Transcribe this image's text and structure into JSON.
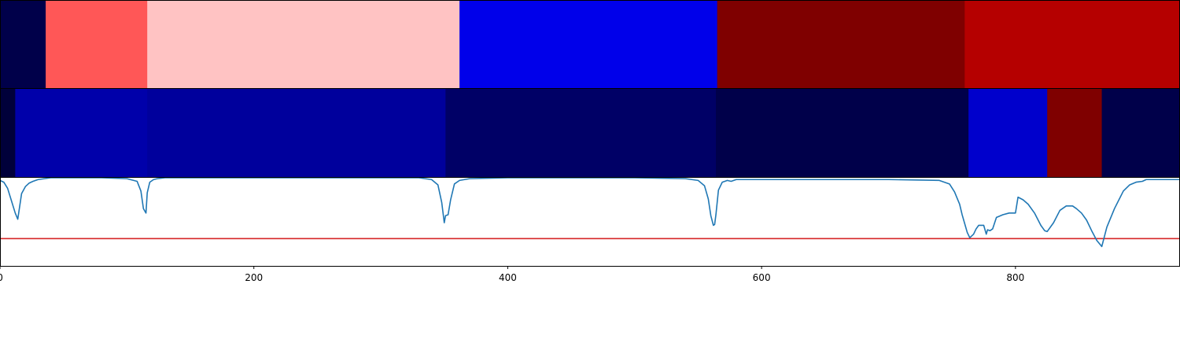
{
  "chart_data": [
    {
      "type": "heatmap",
      "x_domain": [
        0,
        929
      ],
      "segments": [
        {
          "x0": 0,
          "x1": 36,
          "color": "#00004a"
        },
        {
          "x0": 36,
          "x1": 116,
          "color": "#ff5757"
        },
        {
          "x0": 116,
          "x1": 362,
          "color": "#ffc3c3"
        },
        {
          "x0": 362,
          "x1": 565,
          "color": "#0000ea"
        },
        {
          "x0": 565,
          "x1": 760,
          "color": "#7f0000"
        },
        {
          "x0": 760,
          "x1": 929,
          "color": "#b50000"
        }
      ]
    },
    {
      "type": "heatmap",
      "x_domain": [
        0,
        929
      ],
      "segments": [
        {
          "x0": 0,
          "x1": 12,
          "color": "#00003a"
        },
        {
          "x0": 12,
          "x1": 116,
          "color": "#0000aa"
        },
        {
          "x0": 116,
          "x1": 351,
          "color": "#00009c"
        },
        {
          "x0": 351,
          "x1": 564,
          "color": "#000066"
        },
        {
          "x0": 564,
          "x1": 763,
          "color": "#00004a"
        },
        {
          "x0": 763,
          "x1": 825,
          "color": "#0000cc"
        },
        {
          "x0": 825,
          "x1": 868,
          "color": "#7f0000"
        },
        {
          "x0": 868,
          "x1": 929,
          "color": "#00004a"
        }
      ]
    },
    {
      "type": "line",
      "xlim": [
        0,
        929
      ],
      "ylim": [
        0,
        1
      ],
      "xticks": [
        0,
        200,
        400,
        600,
        800
      ],
      "line_color": "#1f77b4",
      "threshold": {
        "y": 0.31,
        "color": "#d62728"
      },
      "series": [
        {
          "x": [
            0,
            3,
            6,
            9,
            12,
            14,
            17,
            20,
            23,
            26,
            30,
            35,
            40,
            50,
            60,
            80,
            100,
            108,
            111,
            113,
            115,
            116,
            118,
            121,
            124,
            130,
            150,
            200,
            250,
            300,
            330,
            340,
            345,
            348,
            350,
            351,
            353,
            355,
            358,
            362,
            370,
            400,
            450,
            500,
            540,
            550,
            555,
            558,
            560,
            562,
            563,
            564,
            566,
            569,
            573,
            576,
            580,
            600,
            650,
            700,
            740,
            748,
            752,
            756,
            758,
            760,
            762,
            764,
            767,
            769,
            771,
            775,
            777,
            778,
            780,
            782,
            785,
            790,
            795,
            800,
            802,
            806,
            810,
            815,
            820,
            823,
            825,
            830,
            835,
            840,
            845,
            848,
            852,
            856,
            860,
            864,
            868,
            872,
            878,
            885,
            890,
            895,
            900,
            903,
            910,
            920,
            929
          ],
          "y": [
            0.97,
            0.95,
            0.88,
            0.74,
            0.6,
            0.53,
            0.82,
            0.9,
            0.94,
            0.96,
            0.98,
            0.99,
            1.0,
            1.0,
            1.0,
            1.0,
            0.99,
            0.96,
            0.85,
            0.65,
            0.6,
            0.83,
            0.95,
            0.98,
            0.99,
            1.0,
            1.0,
            1.0,
            1.0,
            1.0,
            1.0,
            0.98,
            0.92,
            0.72,
            0.49,
            0.57,
            0.58,
            0.75,
            0.93,
            0.97,
            0.99,
            1.0,
            1.0,
            1.0,
            0.99,
            0.97,
            0.91,
            0.76,
            0.57,
            0.46,
            0.47,
            0.58,
            0.86,
            0.95,
            0.97,
            0.96,
            0.98,
            0.98,
            0.98,
            0.98,
            0.97,
            0.93,
            0.84,
            0.7,
            0.58,
            0.48,
            0.38,
            0.32,
            0.36,
            0.42,
            0.46,
            0.46,
            0.36,
            0.41,
            0.4,
            0.42,
            0.55,
            0.58,
            0.6,
            0.6,
            0.78,
            0.75,
            0.7,
            0.6,
            0.46,
            0.4,
            0.39,
            0.49,
            0.63,
            0.68,
            0.68,
            0.65,
            0.6,
            0.52,
            0.4,
            0.29,
            0.22,
            0.44,
            0.65,
            0.85,
            0.92,
            0.95,
            0.96,
            0.98,
            0.98,
            0.98,
            0.98
          ]
        }
      ]
    }
  ]
}
